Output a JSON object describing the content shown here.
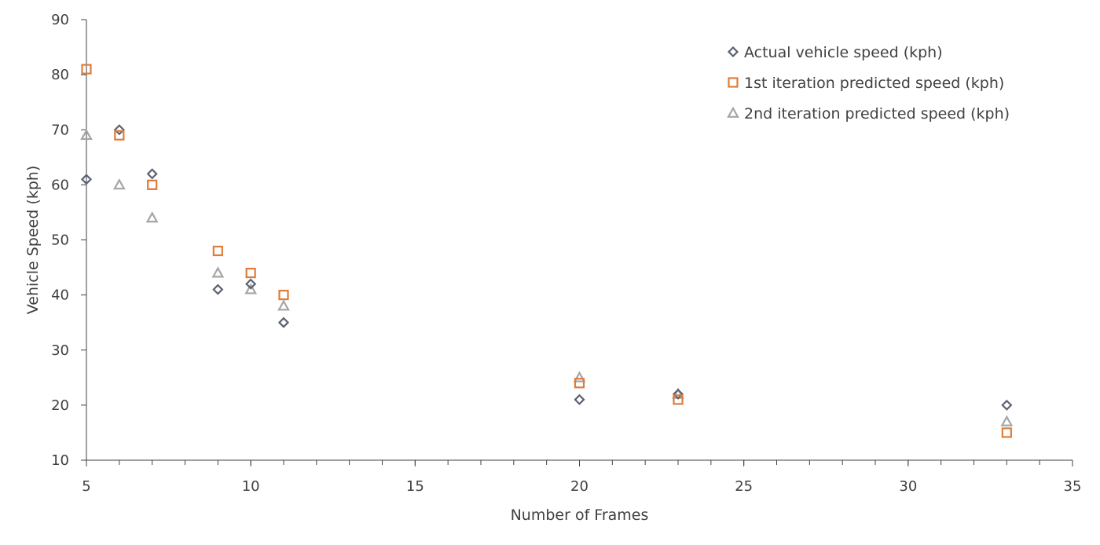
{
  "chart_data": {
    "type": "scatter",
    "xlabel": "Number of Frames",
    "ylabel": "Vehicle Speed (kph)",
    "xlim": [
      5,
      35
    ],
    "ylim": [
      10,
      90
    ],
    "x_ticks": [
      5,
      10,
      15,
      20,
      25,
      30,
      35
    ],
    "y_ticks": [
      10,
      20,
      30,
      40,
      50,
      60,
      70,
      80,
      90
    ],
    "x_minor_step": 1,
    "grid": false,
    "legend_position": "top-right",
    "series": [
      {
        "name": "Actual vehicle speed (kph)",
        "marker": "diamond",
        "color": "#5b6072",
        "x": [
          5,
          6,
          7,
          9,
          10,
          11,
          20,
          23,
          33
        ],
        "y": [
          61,
          70,
          62,
          41,
          42,
          35,
          21,
          22,
          20
        ]
      },
      {
        "name": "1st iteration predicted speed (kph)",
        "marker": "square",
        "color": "#e07b39",
        "x": [
          5,
          6,
          7,
          9,
          10,
          11,
          20,
          23,
          33
        ],
        "y": [
          81,
          69,
          60,
          48,
          44,
          40,
          24,
          21,
          15
        ]
      },
      {
        "name": "2nd iteration predicted speed (kph)",
        "marker": "triangle",
        "color": "#a5a5a5",
        "x": [
          5,
          6,
          7,
          9,
          10,
          11,
          20,
          23,
          33
        ],
        "y": [
          69,
          60,
          54,
          44,
          41,
          38,
          25,
          22,
          17
        ]
      }
    ]
  }
}
